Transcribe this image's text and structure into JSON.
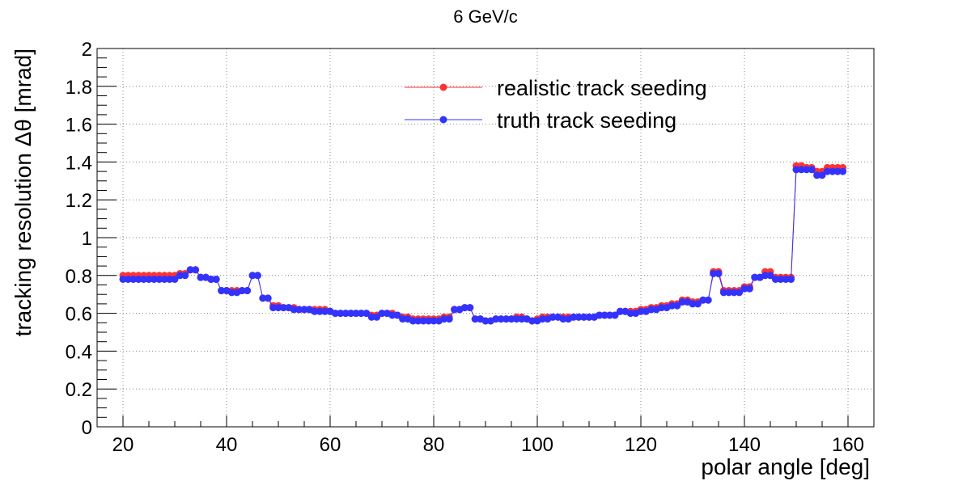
{
  "chart_data": {
    "type": "line",
    "title": "6 GeV/c",
    "xlabel": "polar angle [deg]",
    "ylabel": "tracking resolution  Δθ [mrad]",
    "xlim": [
      15,
      165
    ],
    "ylim": [
      0,
      2
    ],
    "x_ticks": [
      20,
      40,
      60,
      80,
      100,
      120,
      140,
      160
    ],
    "y_ticks": [
      0,
      0.2,
      0.4,
      0.6,
      0.8,
      1,
      1.2,
      1.4,
      1.6,
      1.8,
      2
    ],
    "grid": true,
    "legend_position": "top-center",
    "x": [
      20,
      21,
      22,
      23,
      24,
      25,
      26,
      27,
      28,
      29,
      30,
      31,
      32,
      33,
      34,
      35,
      36,
      37,
      38,
      39,
      40,
      41,
      42,
      43,
      44,
      45,
      46,
      47,
      48,
      49,
      50,
      51,
      52,
      53,
      54,
      55,
      56,
      57,
      58,
      59,
      60,
      61,
      62,
      63,
      64,
      65,
      66,
      67,
      68,
      69,
      70,
      71,
      72,
      73,
      74,
      75,
      76,
      77,
      78,
      79,
      80,
      81,
      82,
      83,
      84,
      85,
      86,
      87,
      88,
      89,
      90,
      91,
      92,
      93,
      94,
      95,
      96,
      97,
      98,
      99,
      100,
      101,
      102,
      103,
      104,
      105,
      106,
      107,
      108,
      109,
      110,
      111,
      112,
      113,
      114,
      115,
      116,
      117,
      118,
      119,
      120,
      121,
      122,
      123,
      124,
      125,
      126,
      127,
      128,
      129,
      130,
      131,
      132,
      133,
      134,
      135,
      136,
      137,
      138,
      139,
      140,
      141,
      142,
      143,
      144,
      145,
      146,
      147,
      148,
      149,
      150,
      151,
      152,
      153,
      154,
      155,
      156,
      157,
      158,
      159
    ],
    "series": [
      {
        "name": "realistic track seeding",
        "color": "#ff3333",
        "values": [
          0.8,
          0.8,
          0.8,
          0.8,
          0.8,
          0.8,
          0.8,
          0.8,
          0.8,
          0.8,
          0.8,
          0.81,
          0.81,
          0.83,
          0.83,
          0.79,
          0.79,
          0.78,
          0.78,
          0.72,
          0.72,
          0.72,
          0.72,
          0.72,
          0.72,
          0.8,
          0.8,
          0.68,
          0.68,
          0.64,
          0.64,
          0.63,
          0.63,
          0.63,
          0.62,
          0.62,
          0.62,
          0.62,
          0.62,
          0.62,
          0.61,
          0.6,
          0.6,
          0.6,
          0.6,
          0.6,
          0.6,
          0.6,
          0.59,
          0.59,
          0.6,
          0.6,
          0.6,
          0.59,
          0.58,
          0.58,
          0.57,
          0.57,
          0.57,
          0.57,
          0.57,
          0.57,
          0.58,
          0.58,
          0.62,
          0.62,
          0.63,
          0.63,
          0.57,
          0.57,
          0.56,
          0.56,
          0.57,
          0.57,
          0.57,
          0.57,
          0.58,
          0.58,
          0.57,
          0.56,
          0.57,
          0.58,
          0.58,
          0.58,
          0.58,
          0.58,
          0.58,
          0.58,
          0.58,
          0.58,
          0.58,
          0.58,
          0.59,
          0.59,
          0.59,
          0.59,
          0.61,
          0.61,
          0.61,
          0.61,
          0.62,
          0.62,
          0.63,
          0.63,
          0.64,
          0.64,
          0.65,
          0.65,
          0.67,
          0.67,
          0.66,
          0.66,
          0.67,
          0.67,
          0.82,
          0.82,
          0.72,
          0.72,
          0.72,
          0.72,
          0.74,
          0.74,
          0.79,
          0.79,
          0.82,
          0.82,
          0.79,
          0.79,
          0.79,
          0.79,
          1.38,
          1.38,
          1.37,
          1.37,
          1.35,
          1.35,
          1.37,
          1.37,
          1.37,
          1.37
        ]
      },
      {
        "name": "truth track seeding",
        "color": "#3333ff",
        "values": [
          0.78,
          0.78,
          0.78,
          0.78,
          0.78,
          0.78,
          0.78,
          0.78,
          0.78,
          0.78,
          0.78,
          0.8,
          0.8,
          0.83,
          0.83,
          0.79,
          0.79,
          0.78,
          0.78,
          0.72,
          0.72,
          0.71,
          0.71,
          0.72,
          0.72,
          0.8,
          0.8,
          0.68,
          0.68,
          0.63,
          0.63,
          0.63,
          0.63,
          0.62,
          0.62,
          0.62,
          0.62,
          0.61,
          0.61,
          0.61,
          0.61,
          0.6,
          0.6,
          0.6,
          0.6,
          0.6,
          0.6,
          0.6,
          0.58,
          0.58,
          0.6,
          0.6,
          0.59,
          0.59,
          0.57,
          0.57,
          0.56,
          0.56,
          0.56,
          0.56,
          0.56,
          0.56,
          0.57,
          0.57,
          0.62,
          0.62,
          0.63,
          0.63,
          0.57,
          0.57,
          0.56,
          0.56,
          0.57,
          0.57,
          0.57,
          0.57,
          0.57,
          0.57,
          0.57,
          0.56,
          0.56,
          0.57,
          0.57,
          0.58,
          0.58,
          0.57,
          0.57,
          0.58,
          0.58,
          0.58,
          0.58,
          0.58,
          0.59,
          0.59,
          0.59,
          0.59,
          0.61,
          0.61,
          0.6,
          0.6,
          0.61,
          0.61,
          0.62,
          0.62,
          0.63,
          0.63,
          0.64,
          0.64,
          0.66,
          0.66,
          0.65,
          0.65,
          0.67,
          0.67,
          0.81,
          0.81,
          0.71,
          0.71,
          0.71,
          0.71,
          0.73,
          0.73,
          0.79,
          0.79,
          0.8,
          0.8,
          0.78,
          0.78,
          0.78,
          0.78,
          1.36,
          1.36,
          1.36,
          1.36,
          1.33,
          1.33,
          1.35,
          1.35,
          1.35,
          1.35
        ]
      }
    ]
  }
}
